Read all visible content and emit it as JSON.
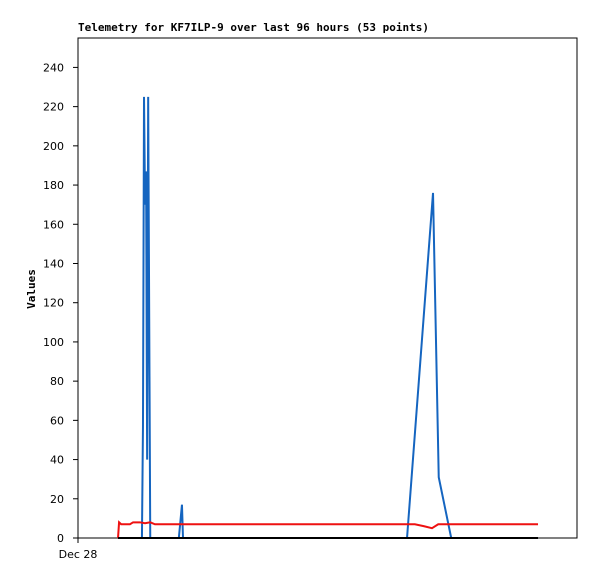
{
  "chart_data": {
    "type": "line",
    "title": "Telemetry for KF7ILP-9 over last 96 hours (53 points)",
    "y_label": "Values",
    "xlim": [
      0,
      96
    ],
    "xticks": [
      {
        "value": 0,
        "label": "Dec 28"
      }
    ],
    "ylim": [
      0,
      255
    ],
    "yticks": [
      0,
      20,
      40,
      60,
      80,
      100,
      120,
      140,
      160,
      180,
      200,
      220,
      240
    ],
    "series": [
      {
        "color": "#1565c0",
        "x": [
          7.7,
          12.3,
          12.5,
          12.7,
          12.9,
          13.1,
          13.3,
          13.5,
          13.7,
          13.9,
          19.4,
          20.0,
          20.2,
          63.3,
          68.3,
          69.4,
          71.8,
          88.5
        ],
        "values": [
          0,
          0,
          57,
          225,
          170,
          187,
          40,
          225,
          112,
          0,
          0,
          17,
          0,
          0,
          176,
          31,
          0,
          0
        ]
      },
      {
        "color": "#ee1111",
        "x": [
          7.7,
          7.9,
          8.3,
          10.0,
          10.6,
          11.9,
          12.9,
          13.9,
          14.8,
          64.8,
          66.6,
          68.1,
          69.3,
          88.5
        ],
        "values": [
          0,
          8,
          7,
          7,
          8,
          8,
          7.5,
          8,
          7,
          7,
          6,
          5,
          7,
          7
        ]
      },
      {
        "color": "#000000",
        "x": [
          7.7,
          88.5
        ],
        "values": [
          0,
          0
        ]
      }
    ]
  }
}
